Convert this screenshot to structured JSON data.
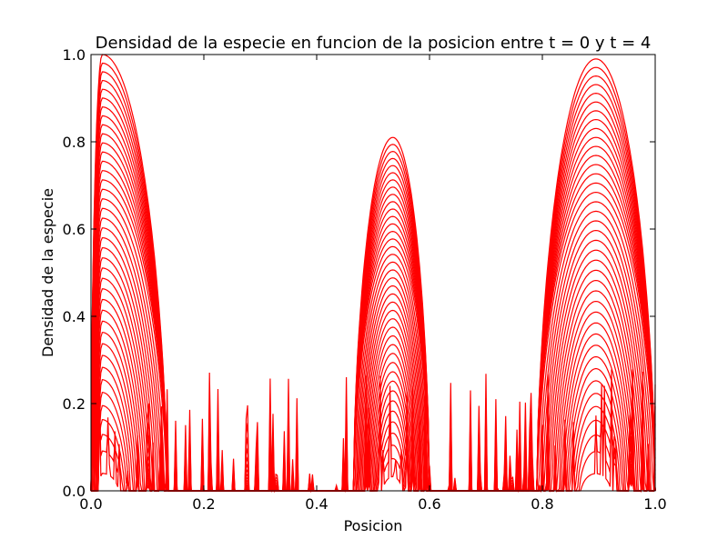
{
  "chart_data": {
    "type": "line",
    "title": "Densidad de la especie en funcion de la posicion entre t = 0 y t = 4",
    "xlabel": "Posicion",
    "ylabel": "Densidad de la especie",
    "xlim": [
      0.0,
      1.0
    ],
    "ylim": [
      0.0,
      1.0
    ],
    "x_ticks": [
      "0.0",
      "0.2",
      "0.4",
      "0.6",
      "0.8",
      "1.0"
    ],
    "y_ticks": [
      "0.0",
      "0.2",
      "0.4",
      "0.6",
      "0.8",
      "1.0"
    ],
    "grid": false,
    "legend": "none",
    "line_color": "#ff0000",
    "time_range": [
      0,
      4
    ],
    "series_count": 40,
    "bumps": [
      {
        "center": 0.02,
        "left": 0.0,
        "right": 0.135,
        "peak_final": 1.0
      },
      {
        "center": 0.535,
        "left": 0.465,
        "right": 0.6,
        "peak_final": 0.81
      },
      {
        "center": 0.895,
        "left": 0.79,
        "right": 1.0,
        "peak_final": 0.99
      }
    ],
    "initial_noise": {
      "max": 0.29
    }
  }
}
